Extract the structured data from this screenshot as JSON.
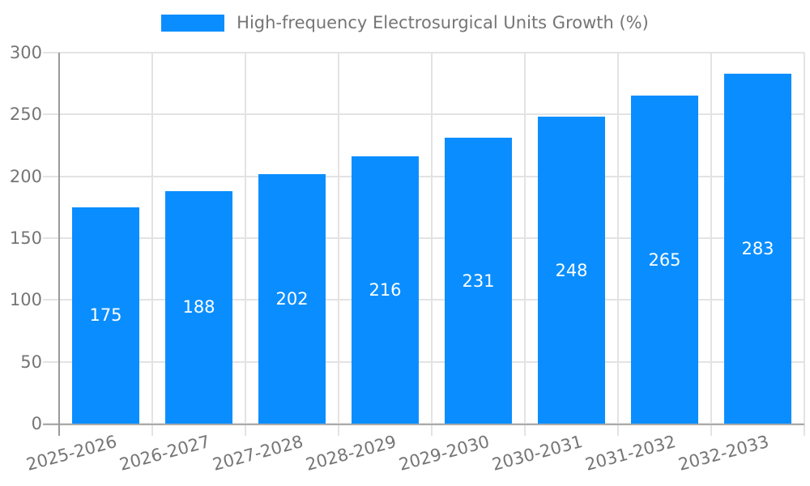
{
  "chart_data": {
    "type": "bar",
    "title": "",
    "legend": "High-frequency Electrosurgical Units Growth (%)",
    "legend_position": "top",
    "categories": [
      "2025-2026",
      "2026-2027",
      "2027-2028",
      "2028-2029",
      "2029-2030",
      "2030-2031",
      "2031-2032",
      "2032-2033"
    ],
    "values": [
      175,
      188,
      202,
      216,
      231,
      248,
      265,
      283
    ],
    "value_labels_shown_inside_bars": true,
    "xlabel": "",
    "ylabel": "",
    "ylim": [
      0,
      300
    ],
    "yticks": [
      0,
      50,
      100,
      150,
      200,
      250,
      300
    ],
    "grid": true,
    "colors": {
      "bar": "#0a8eff",
      "value_label": "#ffffff",
      "axis_text": "#757575",
      "gridline": "#e3e3e3",
      "y_axis_line": "#999999",
      "x_axis_line": "#aaaaaa"
    }
  }
}
